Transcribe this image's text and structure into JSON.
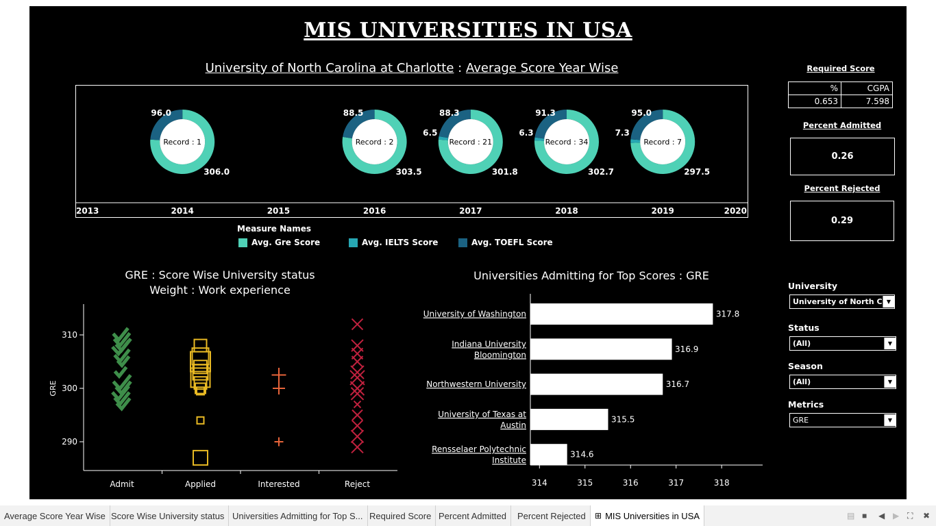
{
  "header": {
    "title": "MIS UNIVERSITIES IN USA"
  },
  "donut_section": {
    "title_university": "University of North Carolina at Charlotte",
    "title_sep": " : ",
    "title_suffix": "Average Score Year Wise"
  },
  "legend": {
    "title": "Measure Names",
    "items": [
      {
        "label": "Avg. Gre Score",
        "color": "#4fd1b6"
      },
      {
        "label": "Avg. IELTS Score",
        "color": "#27a7b3"
      },
      {
        "label": "Avg. TOEFL Score",
        "color": "#1b6282"
      }
    ]
  },
  "chart_data": [
    {
      "type": "pie",
      "title": "University of North Carolina at Charlotte : Average Score Year Wise",
      "x_ticks": [
        "2013",
        "2014",
        "2015",
        "2016",
        "2017",
        "2018",
        "2019",
        "2020"
      ],
      "donuts": [
        {
          "year": "2014",
          "center_label": "Record : 1",
          "gre": 306.0,
          "gre_label": "306.0",
          "ielts": null,
          "ielts_label": "",
          "toefl": 96.0,
          "toefl_label": "96.0"
        },
        {
          "year": "2016",
          "center_label": "Record : 2",
          "gre": 303.5,
          "gre_label": "303.5",
          "ielts": null,
          "ielts_label": "",
          "toefl": 88.5,
          "toefl_label": "88.5"
        },
        {
          "year": "2017",
          "center_label": "Record : 21",
          "gre": 301.8,
          "gre_label": "301.8",
          "ielts": 6.5,
          "ielts_label": "6.5",
          "toefl": 88.3,
          "toefl_label": "88.3"
        },
        {
          "year": "2018",
          "center_label": "Record : 34",
          "gre": 302.7,
          "gre_label": "302.7",
          "ielts": 6.3,
          "ielts_label": "6.3",
          "toefl": 91.3,
          "toefl_label": "91.3"
        },
        {
          "year": "2019",
          "center_label": "Record : 7",
          "gre": 297.5,
          "gre_label": "297.5",
          "ielts": 7.3,
          "ielts_label": "7.3",
          "toefl": 95.0,
          "toefl_label": "95.0"
        }
      ]
    },
    {
      "type": "scatter",
      "title": "GRE : Score Wise University status",
      "subtitle": "Weight : Work experience",
      "ylabel": "GRE",
      "ylim": [
        285,
        313
      ],
      "yticks": [
        290,
        300,
        310
      ],
      "categories": [
        "Admit",
        "Applied",
        "Interested",
        "Reject"
      ],
      "series": [
        {
          "category": "Admit",
          "marker": "check",
          "color": "#3e8e4a",
          "points": [
            {
              "y": 310,
              "w": 1.2
            },
            {
              "y": 309,
              "w": 1.3
            },
            {
              "y": 308,
              "w": 1.2
            },
            {
              "y": 307.5,
              "w": 1.4
            },
            {
              "y": 306,
              "w": 1.2
            },
            {
              "y": 305,
              "w": 0.8
            },
            {
              "y": 303,
              "w": 0.8
            },
            {
              "y": 301,
              "w": 1.5
            },
            {
              "y": 300,
              "w": 1.2
            },
            {
              "y": 299,
              "w": 1.4
            },
            {
              "y": 298,
              "w": 1.2
            },
            {
              "y": 297,
              "w": 1.0
            }
          ]
        },
        {
          "category": "Applied",
          "marker": "square",
          "color": "#e8b923",
          "points": [
            {
              "y": 308,
              "w": 1.2
            },
            {
              "y": 306,
              "w": 1.8
            },
            {
              "y": 305,
              "w": 2.3
            },
            {
              "y": 304,
              "w": 1.3
            },
            {
              "y": 303,
              "w": 1.6
            },
            {
              "y": 302,
              "w": 2.2
            },
            {
              "y": 301,
              "w": 1.2
            },
            {
              "y": 300,
              "w": 0.9
            },
            {
              "y": 299.5,
              "w": 0.5
            },
            {
              "y": 294,
              "w": 0.4
            },
            {
              "y": 287,
              "w": 1.5
            }
          ]
        },
        {
          "category": "Interested",
          "marker": "plus",
          "color": "#e8643a",
          "points": [
            {
              "y": 302.5,
              "w": 1.5
            },
            {
              "y": 300,
              "w": 1.2
            },
            {
              "y": 290,
              "w": 0.7
            }
          ]
        },
        {
          "category": "Reject",
          "marker": "cross",
          "color": "#c0213e",
          "points": [
            {
              "y": 312,
              "w": 1.0
            },
            {
              "y": 308,
              "w": 1.1
            },
            {
              "y": 306.5,
              "w": 1.0
            },
            {
              "y": 305,
              "w": 1.0
            },
            {
              "y": 303,
              "w": 1.3
            },
            {
              "y": 302,
              "w": 1.5
            },
            {
              "y": 300,
              "w": 1.4
            },
            {
              "y": 299,
              "w": 1.2
            },
            {
              "y": 297,
              "w": 0.4
            },
            {
              "y": 295,
              "w": 0.9
            },
            {
              "y": 293,
              "w": 1.0
            },
            {
              "y": 291,
              "w": 1.2
            },
            {
              "y": 289,
              "w": 1.1
            }
          ]
        }
      ]
    },
    {
      "type": "bar",
      "title": "Universities Admitting for Top Scores : GRE",
      "categories": [
        [
          "University of Washington"
        ],
        [
          "Indiana University",
          "Bloomington"
        ],
        [
          "Northwestern University"
        ],
        [
          "University of Texas at",
          "Austin"
        ],
        [
          "Rensselaer Polytechnic",
          "Institute"
        ]
      ],
      "values": [
        317.8,
        316.9,
        316.7,
        315.5,
        314.6
      ],
      "value_labels": [
        "317.8",
        "316.9",
        "316.7",
        "315.5",
        "314.6"
      ],
      "xlim": [
        313.8,
        318.9
      ],
      "xticks": [
        "314",
        "315",
        "316",
        "317",
        "318"
      ]
    }
  ],
  "required_score": {
    "title": "Required Score",
    "headers": [
      "%",
      "CGPA"
    ],
    "values": [
      "0.653",
      "7.598"
    ]
  },
  "percent_admitted": {
    "title": "Percent Admitted",
    "value": "0.26"
  },
  "percent_rejected": {
    "title": "Percent Rejected",
    "value": "0.29"
  },
  "filters": {
    "university": {
      "label": "University",
      "value": "University of North Car..."
    },
    "status": {
      "label": "Status",
      "value": "(All)"
    },
    "season": {
      "label": "Season",
      "value": "(All)"
    },
    "metrics": {
      "label": "Metrics",
      "value": "GRE"
    }
  },
  "tabs": [
    {
      "label": "Average Score Year Wise"
    },
    {
      "label": "Score Wise University status"
    },
    {
      "label": "Universities Admitting for Top S..."
    },
    {
      "label": "Required Score"
    },
    {
      "label": "Percent Admitted"
    },
    {
      "label": "Percent Rejected"
    },
    {
      "label": "MIS Universities in USA"
    }
  ],
  "colors": {
    "background": "#000000",
    "gre": "#4fd1b6",
    "ielts": "#27a7b3",
    "toefl": "#1b6282"
  }
}
